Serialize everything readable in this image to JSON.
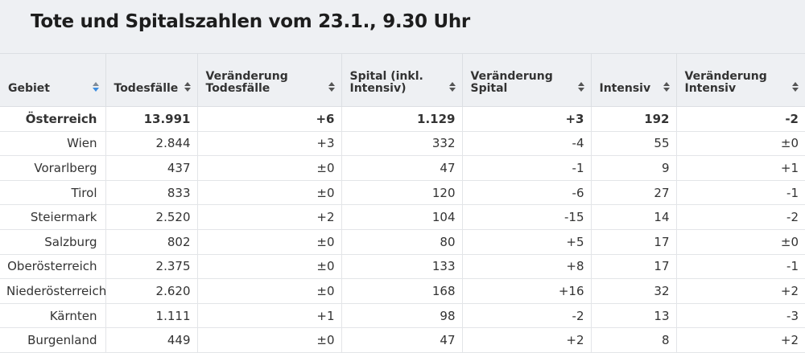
{
  "title": "Tote und Spitalszahlen vom 23.1., 9.30 Uhr",
  "colors": {
    "header_bg": "#eef0f3",
    "sort_active": "#3e8ee0",
    "grid": "#e3e5e8"
  },
  "columns": [
    {
      "label": "Gebiet",
      "sort_active": true
    },
    {
      "label": "Todesfälle",
      "sort_active": false
    },
    {
      "label": "Veränderung Todesfälle",
      "sort_active": false
    },
    {
      "label": "Spital (inkl. Intensiv)",
      "sort_active": false
    },
    {
      "label": "Veränderung Spital",
      "sort_active": false
    },
    {
      "label": "Intensiv",
      "sort_active": false
    },
    {
      "label": "Veränderung Intensiv",
      "sort_active": false
    }
  ],
  "chart_data": {
    "type": "table",
    "title": "Tote und Spitalszahlen vom 23.1., 9.30 Uhr",
    "headers": [
      "Gebiet",
      "Todesfälle",
      "Veränderung Todesfälle",
      "Spital (inkl. Intensiv)",
      "Veränderung Spital",
      "Intensiv",
      "Veränderung Intensiv"
    ],
    "rows": [
      [
        "Österreich",
        "13.991",
        "+6",
        "1.129",
        "+3",
        "192",
        "-2"
      ],
      [
        "Wien",
        "2.844",
        "+3",
        "332",
        "-4",
        "55",
        "±0"
      ],
      [
        "Vorarlberg",
        "437",
        "±0",
        "47",
        "-1",
        "9",
        "+1"
      ],
      [
        "Tirol",
        "833",
        "±0",
        "120",
        "-6",
        "27",
        "-1"
      ],
      [
        "Steiermark",
        "2.520",
        "+2",
        "104",
        "-15",
        "14",
        "-2"
      ],
      [
        "Salzburg",
        "802",
        "±0",
        "80",
        "+5",
        "17",
        "±0"
      ],
      [
        "Oberösterreich",
        "2.375",
        "±0",
        "133",
        "+8",
        "17",
        "-1"
      ],
      [
        "Niederösterreich",
        "2.620",
        "±0",
        "168",
        "+16",
        "32",
        "+2"
      ],
      [
        "Kärnten",
        "1.111",
        "+1",
        "98",
        "-2",
        "13",
        "-3"
      ],
      [
        "Burgenland",
        "449",
        "±0",
        "47",
        "+2",
        "8",
        "+2"
      ]
    ]
  }
}
